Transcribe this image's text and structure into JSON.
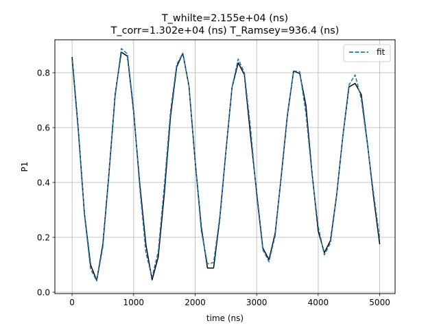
{
  "chart_data": {
    "type": "line",
    "title_line1": "T_whilte=2.155e+04 (ns)",
    "title_line2": "T_corr=1.302e+04 (ns) T_Ramsey=936.4 (ns)",
    "xlabel": "time (ns)",
    "ylabel": "P1",
    "xlim": [
      -280,
      5250
    ],
    "ylim": [
      -0.005,
      0.92
    ],
    "xticks": [
      0,
      1000,
      2000,
      3000,
      4000,
      5000
    ],
    "yticks": [
      0.0,
      0.2,
      0.4,
      0.6,
      0.8
    ],
    "xtick_labels": [
      "0",
      "1000",
      "2000",
      "3000",
      "4000",
      "5000"
    ],
    "ytick_labels": [
      "0.0",
      "0.2",
      "0.4",
      "0.6",
      "0.8"
    ],
    "grid": true,
    "legend_position": "top-right",
    "series": [
      {
        "style": "solid",
        "color": "#000000",
        "x": [
          0,
          100,
          200,
          300,
          400,
          500,
          600,
          700,
          800,
          900,
          1000,
          1100,
          1200,
          1300,
          1400,
          1500,
          1600,
          1700,
          1800,
          1900,
          2000,
          2100,
          2200,
          2300,
          2400,
          2500,
          2600,
          2700,
          2800,
          2900,
          3000,
          3100,
          3200,
          3300,
          3400,
          3500,
          3600,
          3700,
          3800,
          3900,
          4000,
          4100,
          4200,
          4300,
          4400,
          4500,
          4600,
          4700,
          4800,
          4900,
          5000
        ],
        "values": [
          0.857,
          0.596,
          0.288,
          0.1,
          0.043,
          0.175,
          0.436,
          0.721,
          0.875,
          0.86,
          0.658,
          0.395,
          0.173,
          0.045,
          0.128,
          0.361,
          0.641,
          0.821,
          0.871,
          0.75,
          0.478,
          0.238,
          0.088,
          0.088,
          0.267,
          0.513,
          0.747,
          0.836,
          0.793,
          0.571,
          0.363,
          0.161,
          0.119,
          0.214,
          0.423,
          0.645,
          0.806,
          0.797,
          0.682,
          0.434,
          0.223,
          0.144,
          0.189,
          0.355,
          0.567,
          0.748,
          0.761,
          0.721,
          0.543,
          0.346,
          0.175
        ]
      },
      {
        "name": "fit",
        "style": "dashed",
        "color": "#1f77b4",
        "x": [
          0,
          100,
          200,
          300,
          400,
          500,
          600,
          700,
          800,
          900,
          1000,
          1100,
          1200,
          1300,
          1400,
          1500,
          1600,
          1700,
          1800,
          1900,
          2000,
          2100,
          2200,
          2300,
          2400,
          2500,
          2600,
          2700,
          2800,
          2900,
          3000,
          3100,
          3200,
          3300,
          3400,
          3500,
          3600,
          3700,
          3800,
          3900,
          4000,
          4100,
          4200,
          4300,
          4400,
          4500,
          4600,
          4700,
          4800,
          4900,
          5000
        ],
        "values": [
          0.845,
          0.588,
          0.283,
          0.085,
          0.041,
          0.165,
          0.43,
          0.714,
          0.888,
          0.868,
          0.666,
          0.38,
          0.143,
          0.055,
          0.148,
          0.391,
          0.66,
          0.83,
          0.871,
          0.75,
          0.479,
          0.223,
          0.103,
          0.108,
          0.274,
          0.515,
          0.748,
          0.85,
          0.8,
          0.599,
          0.352,
          0.155,
          0.111,
          0.205,
          0.429,
          0.65,
          0.806,
          0.804,
          0.652,
          0.429,
          0.24,
          0.136,
          0.18,
          0.352,
          0.568,
          0.755,
          0.792,
          0.704,
          0.539,
          0.36,
          0.195
        ]
      }
    ]
  }
}
